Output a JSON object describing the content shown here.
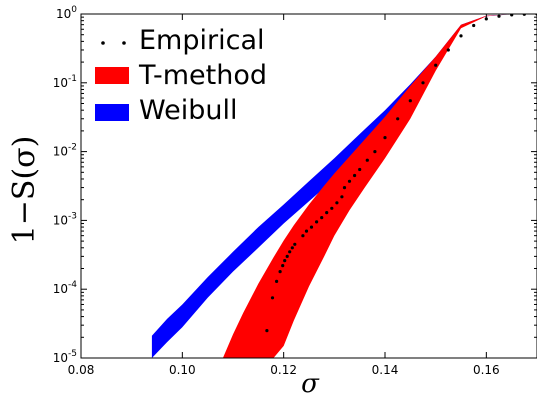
{
  "chart_data": {
    "type": "line",
    "xlabel": "σ",
    "ylabel": "1−S(σ)",
    "xlim": [
      0.08,
      0.17
    ],
    "ylim": [
      1e-05,
      1
    ],
    "yscale": "log",
    "grid": false,
    "legend_position": "top-left",
    "x_ticks": [
      0.08,
      0.1,
      0.12,
      0.14,
      0.16
    ],
    "x_tick_labels": [
      "0.08",
      "0.10",
      "0.12",
      "0.14",
      "0.16"
    ],
    "y_ticks": [
      1e-05,
      0.0001,
      0.001,
      0.01,
      0.1,
      1
    ],
    "y_tick_labels": [
      {
        "base": "10",
        "exp": "-5"
      },
      {
        "base": "10",
        "exp": "-4"
      },
      {
        "base": "10",
        "exp": "-3"
      },
      {
        "base": "10",
        "exp": "-2"
      },
      {
        "base": "10",
        "exp": "-1"
      },
      {
        "base": "10",
        "exp": "0"
      }
    ],
    "legend": [
      {
        "label": "Empirical",
        "color": "#000000",
        "style": "dots"
      },
      {
        "label": "T-method",
        "color": "#ff0000",
        "style": "band"
      },
      {
        "label": "Weibull",
        "color": "#0000ff",
        "style": "band"
      }
    ],
    "series": [
      {
        "name": "Weibull",
        "type": "band",
        "color": "#0000ff",
        "x": [
          0.094,
          0.097,
          0.1,
          0.105,
          0.11,
          0.115,
          0.12,
          0.125,
          0.13,
          0.135,
          0.14,
          0.145,
          0.15,
          0.155,
          0.16,
          0.165,
          0.17
        ],
        "lower": [
          1e-05,
          1.7e-05,
          2.8e-05,
          7.5e-05,
          0.00018,
          0.0004,
          0.0009,
          0.0019,
          0.004,
          0.009,
          0.02,
          0.052,
          0.19,
          0.65,
          0.93,
          0.99,
          1.0
        ],
        "upper": [
          2.1e-05,
          3.7e-05,
          6e-05,
          0.00015,
          0.00035,
          0.0008,
          0.0017,
          0.0037,
          0.008,
          0.018,
          0.04,
          0.095,
          0.24,
          0.7,
          0.94,
          0.99,
          1.0
        ]
      },
      {
        "name": "T-method",
        "type": "band",
        "color": "#ff0000",
        "x": [
          0.108,
          0.11,
          0.112,
          0.115,
          0.118,
          0.12,
          0.122,
          0.125,
          0.128,
          0.13,
          0.133,
          0.136,
          0.14,
          0.145,
          0.15,
          0.155,
          0.16,
          0.165,
          0.17
        ],
        "lower": [
          1e-05,
          1e-05,
          1e-05,
          1e-05,
          1e-05,
          1.5e-05,
          3.5e-05,
          0.00011,
          0.0003,
          0.0006,
          0.0014,
          0.003,
          0.008,
          0.03,
          0.15,
          0.62,
          0.93,
          0.99,
          1.0
        ],
        "upper": [
          1e-05,
          2.2e-05,
          4.5e-05,
          0.00012,
          0.00029,
          0.00051,
          0.00085,
          0.0017,
          0.0032,
          0.0048,
          0.0085,
          0.015,
          0.032,
          0.09,
          0.24,
          0.7,
          0.94,
          0.99,
          1.0
        ]
      },
      {
        "name": "Empirical",
        "type": "scatter",
        "color": "#000000",
        "x": [
          0.1167,
          0.1178,
          0.1186,
          0.1193,
          0.1198,
          0.1202,
          0.1207,
          0.1212,
          0.1217,
          0.1222,
          0.1238,
          0.1245,
          0.1255,
          0.1265,
          0.1275,
          0.1285,
          0.1295,
          0.1305,
          0.1315,
          0.132,
          0.133,
          0.134,
          0.135,
          0.1365,
          0.138,
          0.14,
          0.1425,
          0.145,
          0.1475,
          0.15,
          0.1525,
          0.155,
          0.1575,
          0.16,
          0.1625,
          0.165,
          0.1675,
          0.17
        ],
        "y": [
          2.5e-05,
          7.5e-05,
          0.00013,
          0.00018,
          0.00022,
          0.00026,
          0.0003,
          0.00035,
          0.0004,
          0.00045,
          0.0006,
          0.0007,
          0.0008,
          0.00095,
          0.0011,
          0.0013,
          0.0015,
          0.0018,
          0.0022,
          0.003,
          0.0037,
          0.0045,
          0.0055,
          0.0075,
          0.01,
          0.016,
          0.03,
          0.055,
          0.1,
          0.18,
          0.3,
          0.48,
          0.68,
          0.85,
          0.93,
          0.97,
          0.99,
          1.0
        ]
      }
    ]
  }
}
